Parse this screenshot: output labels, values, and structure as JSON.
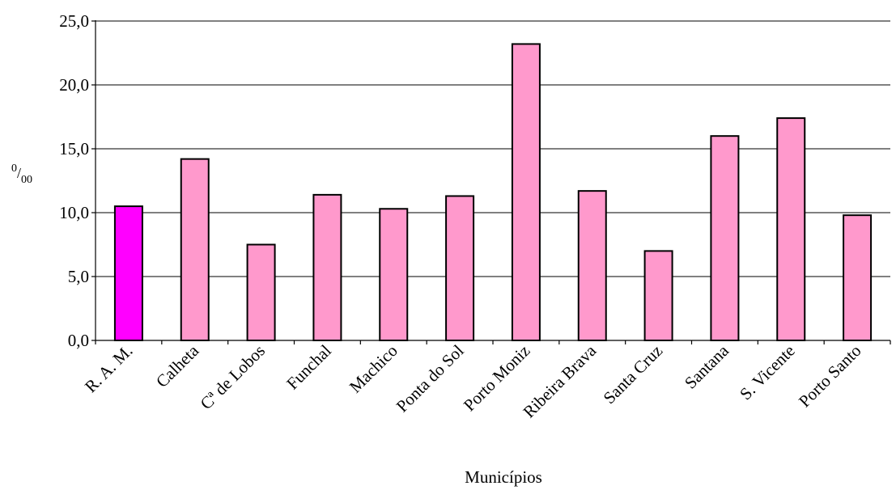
{
  "chart_data": {
    "type": "bar",
    "categories": [
      "R. A. M.",
      "Calheta",
      "Cª de Lobos",
      "Funchal",
      "Machico",
      "Ponta do Sol",
      "Porto Moniz",
      "Ribeira Brava",
      "Santa Cruz",
      "Santana",
      "S. Vicente",
      "Porto Santo"
    ],
    "values": [
      10.5,
      14.2,
      7.5,
      11.4,
      10.3,
      11.3,
      23.2,
      11.7,
      7.0,
      16.0,
      17.4,
      9.8
    ],
    "highlight_index": 0,
    "colors": {
      "default": "#ff99cc",
      "highlight": "#ff00ff"
    },
    "yticks": [
      "0,0",
      "5,0",
      "10,0",
      "15,0",
      "20,0",
      "25,0"
    ],
    "ylim": [
      0,
      25
    ],
    "ylabel": "0/00",
    "xlabel": "Municípios",
    "grid": true
  }
}
